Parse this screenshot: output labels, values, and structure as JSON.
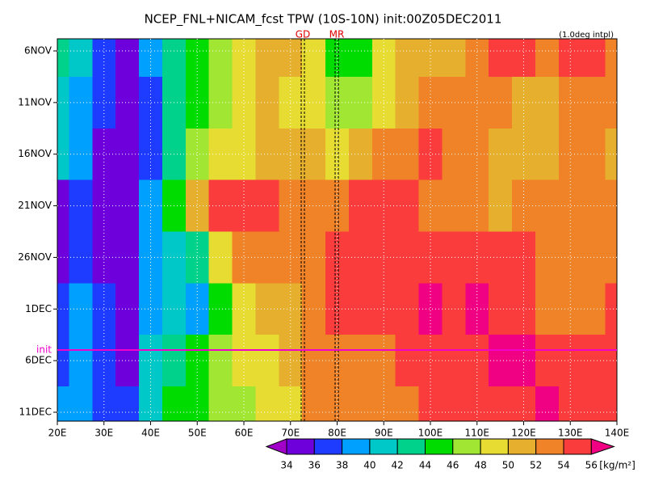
{
  "chart_data": {
    "type": "heatmap",
    "title": "NCEP_FNL+NICAM_fcst TPW (10S-10N) init:00Z05DEC2011",
    "note": "(1.0deg intpl)",
    "x": [
      "20E",
      null,
      "30E",
      null,
      "40E",
      null,
      "50E",
      null,
      "60E",
      null,
      "70E",
      null,
      "80E",
      null,
      "90E",
      null,
      "100E",
      null,
      "110E",
      null,
      "120E",
      null,
      "130E",
      null,
      "140E"
    ],
    "y": [
      "6NOV",
      "11NOV",
      "16NOV",
      "21NOV",
      "26NOV",
      "1DEC",
      "6DEC",
      "11DEC"
    ],
    "values": [
      [
        42,
        40,
        37,
        35,
        38,
        42,
        44,
        46,
        49,
        51,
        51,
        48,
        44,
        45,
        48,
        50,
        51,
        51,
        52,
        54,
        54,
        53,
        54,
        55,
        53
      ],
      [
        41,
        39,
        36,
        35,
        37,
        42,
        45,
        47,
        49,
        50,
        49,
        48,
        46,
        47,
        49,
        51,
        52,
        53,
        53,
        52,
        51,
        51,
        52,
        53,
        52
      ],
      [
        40,
        38,
        35,
        34,
        37,
        42,
        46,
        48,
        49,
        50,
        50,
        50,
        49,
        51,
        52,
        53,
        54,
        53,
        52,
        51,
        50,
        51,
        52,
        52,
        51
      ],
      [
        35,
        36,
        34,
        34,
        38,
        44,
        50,
        54,
        55,
        55,
        53,
        52,
        53,
        54,
        55,
        54,
        53,
        52,
        52,
        51,
        52,
        52,
        52,
        53,
        52
      ],
      [
        35,
        37,
        35,
        34,
        38,
        40,
        42,
        48,
        52,
        53,
        53,
        53,
        55,
        55,
        55,
        54,
        54,
        55,
        55,
        55,
        54,
        53,
        53,
        52,
        53
      ],
      [
        36,
        38,
        36,
        35,
        39,
        40,
        38,
        44,
        48,
        50,
        51,
        52,
        54,
        55,
        55,
        55,
        56,
        55,
        56,
        55,
        54,
        53,
        52,
        53,
        54
      ],
      [
        37,
        38,
        37,
        35,
        40,
        42,
        44,
        46,
        48,
        49,
        50,
        52,
        52,
        53,
        53,
        54,
        55,
        54,
        55,
        56,
        56,
        55,
        54,
        55,
        55
      ],
      [
        38,
        39,
        37,
        36,
        41,
        44,
        45,
        46,
        47,
        48,
        49,
        52,
        53,
        52,
        52,
        53,
        54,
        54,
        55,
        55,
        55,
        56,
        55,
        54,
        54
      ]
    ],
    "levels": [
      34,
      36,
      38,
      40,
      42,
      44,
      46,
      48,
      50,
      52,
      54,
      56
    ],
    "colors": [
      "#a000c8",
      "#6e00dc",
      "#1e3cff",
      "#00a0ff",
      "#00c8c8",
      "#00d28c",
      "#00dc00",
      "#a0e632",
      "#e6dc32",
      "#e6af2d",
      "#f08228",
      "#fa3c3c",
      "#f00082"
    ],
    "units": "[kg/m²]",
    "markers": [
      "GD",
      "MR"
    ],
    "init_label": "init",
    "grid": true
  }
}
